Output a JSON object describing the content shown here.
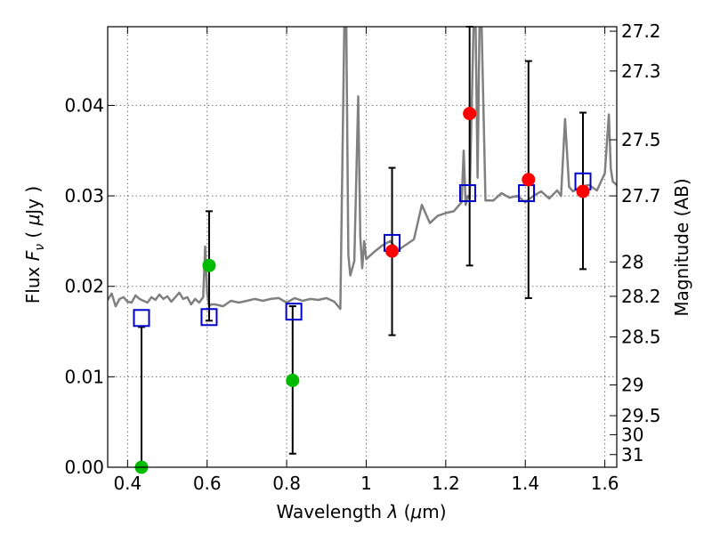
{
  "chart_data": {
    "type": "scatter",
    "xlabel": "Wavelength  λ (μm)",
    "ylabel": "Flux  Fν  ( μJy )",
    "ylabel_right": "Magnitude (AB)",
    "xlim": [
      0.35,
      1.63
    ],
    "ylim": [
      0.0,
      0.0487
    ],
    "grid": true,
    "x_ticks": [
      0.4,
      0.6,
      0.8,
      1.0,
      1.2,
      1.4,
      1.6
    ],
    "x_tick_labels": [
      "0.4",
      "0.6",
      "0.8",
      "1",
      "1.2",
      "1.4",
      "1.6"
    ],
    "y_ticks": [
      0.0,
      0.01,
      0.02,
      0.03,
      0.04
    ],
    "y_tick_labels": [
      "0.00",
      "0.01",
      "0.02",
      "0.03",
      "0.04"
    ],
    "right_ticks": [
      {
        "label": "27.2",
        "flux": 0.0482
      },
      {
        "label": "27.3",
        "flux": 0.0438
      },
      {
        "label": "27.5",
        "flux": 0.0362
      },
      {
        "label": "27.7",
        "flux": 0.03
      },
      {
        "label": "28",
        "flux": 0.0227
      },
      {
        "label": "28.2",
        "flux": 0.0189
      },
      {
        "label": "28.5",
        "flux": 0.0144
      },
      {
        "label": "29",
        "flux": 0.0091
      },
      {
        "label": "29.5",
        "flux": 0.0057
      },
      {
        "label": "30",
        "flux": 0.0036
      },
      {
        "label": "31",
        "flux": 0.0014
      }
    ],
    "colors": {
      "model": "#808080",
      "green_points": "#00bb00",
      "red_points": "#ff0000",
      "model_boxes": "#0000cc",
      "errorbars": "#000000"
    },
    "series": [
      {
        "kind": "line",
        "x": [
          0.35,
          0.36,
          0.37,
          0.38,
          0.39,
          0.4,
          0.41,
          0.42,
          0.43,
          0.44,
          0.45,
          0.46,
          0.47,
          0.48,
          0.49,
          0.5,
          0.51,
          0.52,
          0.53,
          0.54,
          0.55,
          0.56,
          0.57,
          0.58,
          0.59,
          0.595,
          0.6,
          0.605,
          0.61,
          0.62,
          0.64,
          0.66,
          0.68,
          0.7,
          0.72,
          0.74,
          0.76,
          0.78,
          0.8,
          0.82,
          0.84,
          0.86,
          0.88,
          0.9,
          0.92,
          0.935,
          0.945,
          0.95,
          0.955,
          0.96,
          0.97,
          0.98,
          0.985,
          0.99,
          0.995,
          1.0,
          1.02,
          1.04,
          1.06,
          1.08,
          1.1,
          1.12,
          1.14,
          1.16,
          1.18,
          1.2,
          1.22,
          1.24,
          1.245,
          1.25,
          1.255,
          1.26,
          1.27,
          1.275,
          1.28,
          1.285,
          1.29,
          1.3,
          1.32,
          1.34,
          1.36,
          1.38,
          1.4,
          1.42,
          1.44,
          1.46,
          1.48,
          1.49,
          1.5,
          1.51,
          1.52,
          1.54,
          1.56,
          1.58,
          1.6,
          1.61,
          1.615,
          1.62,
          1.63
        ],
        "y": [
          0.0185,
          0.0192,
          0.0178,
          0.0186,
          0.0188,
          0.0183,
          0.0182,
          0.019,
          0.0186,
          0.0184,
          0.0182,
          0.0188,
          0.0185,
          0.0191,
          0.0186,
          0.0189,
          0.0183,
          0.0188,
          0.0193,
          0.0186,
          0.0188,
          0.018,
          0.0186,
          0.0182,
          0.0188,
          0.0244,
          0.0192,
          0.0178,
          0.018,
          0.018,
          0.0178,
          0.0184,
          0.0182,
          0.0184,
          0.0186,
          0.0184,
          0.0186,
          0.0187,
          0.0182,
          0.0187,
          0.0184,
          0.0186,
          0.0185,
          0.0187,
          0.0183,
          0.0175,
          0.049,
          0.049,
          0.0235,
          0.0212,
          0.0228,
          0.041,
          0.0255,
          0.022,
          0.025,
          0.023,
          0.0238,
          0.0245,
          0.025,
          0.024,
          0.0246,
          0.0252,
          0.029,
          0.027,
          0.0278,
          0.0281,
          0.0283,
          0.0293,
          0.035,
          0.029,
          0.03,
          0.0297,
          0.049,
          0.049,
          0.032,
          0.049,
          0.049,
          0.0295,
          0.0295,
          0.0303,
          0.0298,
          0.03,
          0.0293,
          0.03,
          0.0305,
          0.0297,
          0.0306,
          0.03,
          0.0385,
          0.031,
          0.0305,
          0.031,
          0.0312,
          0.0306,
          0.0325,
          0.039,
          0.033,
          0.0316,
          0.0312
        ]
      },
      {
        "kind": "errorbar_points",
        "color_key": "green_points",
        "points": [
          {
            "x": 0.435,
            "y": 0.0,
            "ylo": 0.0,
            "yhi": 0.0155
          },
          {
            "x": 0.605,
            "y": 0.0223,
            "ylo": 0.0162,
            "yhi": 0.0283
          },
          {
            "x": 0.815,
            "y": 0.0096,
            "ylo": 0.0015,
            "yhi": 0.0178
          }
        ]
      },
      {
        "kind": "errorbar_points",
        "color_key": "red_points",
        "points": [
          {
            "x": 1.065,
            "y": 0.0239,
            "ylo": 0.0146,
            "yhi": 0.0331
          },
          {
            "x": 1.26,
            "y": 0.0391,
            "ylo": 0.0223,
            "yhi": 0.0487
          },
          {
            "x": 1.408,
            "y": 0.0318,
            "ylo": 0.0187,
            "yhi": 0.0449
          },
          {
            "x": 1.545,
            "y": 0.0305,
            "ylo": 0.0219,
            "yhi": 0.0392
          }
        ]
      },
      {
        "kind": "boxes",
        "color_key": "model_boxes",
        "points": [
          {
            "x": 0.435,
            "y": 0.0165
          },
          {
            "x": 0.605,
            "y": 0.0166
          },
          {
            "x": 0.818,
            "y": 0.0172
          },
          {
            "x": 1.065,
            "y": 0.0248
          },
          {
            "x": 1.255,
            "y": 0.0303
          },
          {
            "x": 1.403,
            "y": 0.0303
          },
          {
            "x": 1.545,
            "y": 0.0316
          }
        ]
      }
    ]
  }
}
